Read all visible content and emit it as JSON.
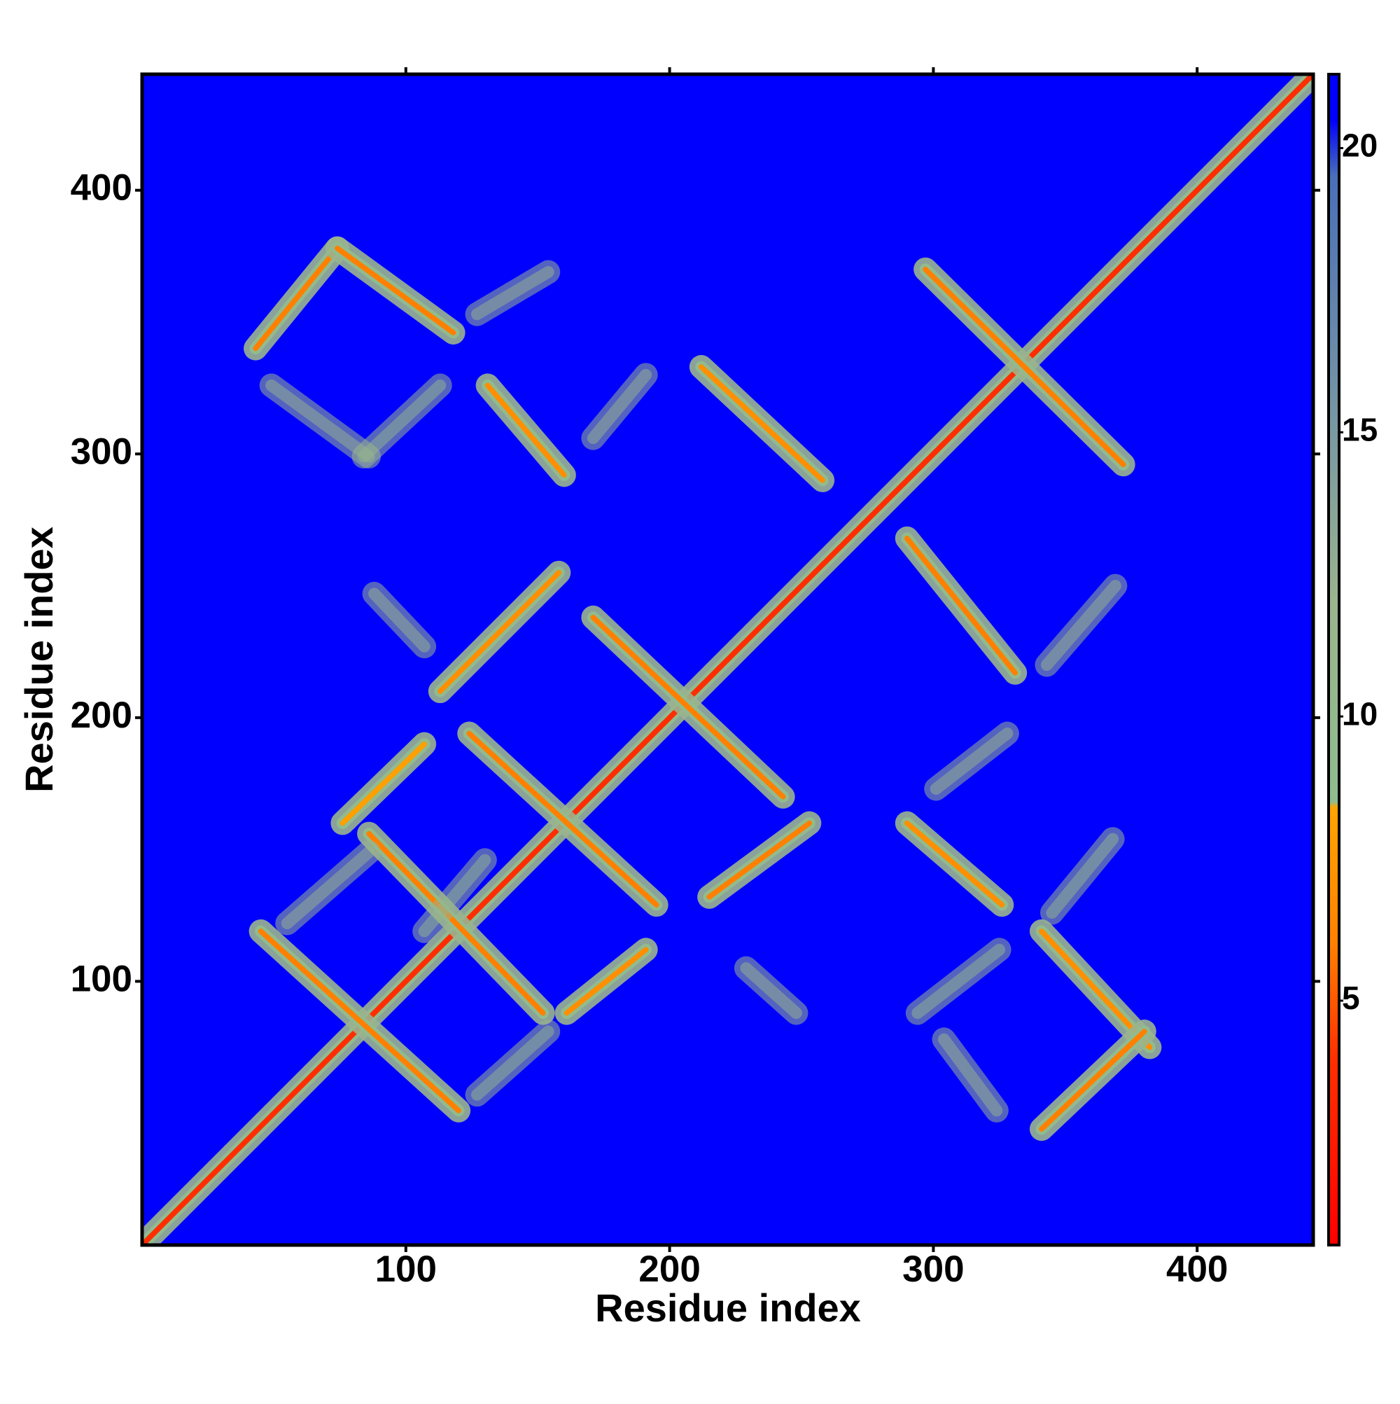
{
  "chart_data": {
    "type": "contact-map",
    "x_label": "Residue index",
    "y_label": "Residue index",
    "xlim": [
      0,
      444
    ],
    "ylim": [
      0,
      444
    ],
    "xticks": [
      100,
      200,
      300,
      400
    ],
    "yticks": [
      100,
      200,
      300,
      400
    ],
    "colorbar": {
      "lim": [
        0.7,
        21.3
      ],
      "ticks": [
        5,
        10,
        15,
        20
      ],
      "stops": [
        [
          0.7,
          "#ff0000"
        ],
        [
          4,
          "#ff3000"
        ],
        [
          6,
          "#ff8000"
        ],
        [
          8.4,
          "#ffa500"
        ],
        [
          8.5,
          "#8fbc8f"
        ],
        [
          12,
          "#9ab48e"
        ],
        [
          16,
          "#6f8fa8"
        ],
        [
          19.5,
          "#4a6fb8"
        ],
        [
          20.5,
          "#0000ff"
        ],
        [
          21.3,
          "#0000ff"
        ]
      ]
    },
    "contacts": [
      {
        "from": [
          1,
          1
        ],
        "to": [
          444,
          444
        ],
        "value": 3.8
      },
      {
        "from": [
          43,
          340
        ],
        "to": [
          74,
          378
        ],
        "value": 6
      },
      {
        "from": [
          74,
          378
        ],
        "to": [
          118,
          346
        ],
        "value": 6
      },
      {
        "from": [
          127,
          353
        ],
        "to": [
          154,
          369
        ],
        "value": 11
      },
      {
        "from": [
          49,
          326
        ],
        "to": [
          86,
          299
        ],
        "value": 11
      },
      {
        "from": [
          84,
          299
        ],
        "to": [
          113,
          326
        ],
        "value": 10
      },
      {
        "from": [
          131,
          326
        ],
        "to": [
          160,
          292
        ],
        "value": 7
      },
      {
        "from": [
          171,
          306
        ],
        "to": [
          191,
          330
        ],
        "value": 11
      },
      {
        "from": [
          212,
          333
        ],
        "to": [
          258,
          290
        ],
        "value": 7
      },
      {
        "from": [
          297,
          370
        ],
        "to": [
          372,
          296
        ],
        "value": 6
      },
      {
        "from": [
          290,
          268
        ],
        "to": [
          331,
          217
        ],
        "value": 6
      },
      {
        "from": [
          343,
          220
        ],
        "to": [
          369,
          250
        ],
        "value": 11
      },
      {
        "from": [
          113,
          210
        ],
        "to": [
          158,
          255
        ],
        "value": 7
      },
      {
        "from": [
          88,
          247
        ],
        "to": [
          107,
          227
        ],
        "value": 11
      },
      {
        "from": [
          171,
          238
        ],
        "to": [
          243,
          170
        ],
        "value": 6
      },
      {
        "from": [
          124,
          194
        ],
        "to": [
          195,
          129
        ],
        "value": 6
      },
      {
        "from": [
          76,
          160
        ],
        "to": [
          107,
          190
        ],
        "value": 8
      },
      {
        "from": [
          86,
          156
        ],
        "to": [
          152,
          88
        ],
        "value": 6
      },
      {
        "from": [
          161,
          88
        ],
        "to": [
          191,
          112
        ],
        "value": 7
      },
      {
        "from": [
          215,
          132
        ],
        "to": [
          253,
          160
        ],
        "value": 6
      },
      {
        "from": [
          229,
          105
        ],
        "to": [
          248,
          88
        ],
        "value": 11
      },
      {
        "from": [
          127,
          57
        ],
        "to": [
          154,
          81
        ],
        "value": 10
      },
      {
        "from": [
          45,
          119
        ],
        "to": [
          120,
          51
        ],
        "value": 6
      },
      {
        "from": [
          55,
          122
        ],
        "to": [
          86,
          149
        ],
        "value": 11
      },
      {
        "from": [
          107,
          119
        ],
        "to": [
          130,
          146
        ],
        "value": 10
      },
      {
        "from": [
          290,
          160
        ],
        "to": [
          326,
          129
        ],
        "value": 7
      },
      {
        "from": [
          301,
          173
        ],
        "to": [
          328,
          194
        ],
        "value": 11
      },
      {
        "from": [
          345,
          126
        ],
        "to": [
          368,
          154
        ],
        "value": 10
      },
      {
        "from": [
          341,
          119
        ],
        "to": [
          382,
          75
        ],
        "value": 7
      },
      {
        "from": [
          341,
          44
        ],
        "to": [
          380,
          81
        ],
        "value": 6
      },
      {
        "from": [
          294,
          88
        ],
        "to": [
          325,
          112
        ],
        "value": 10
      },
      {
        "from": [
          304,
          78
        ],
        "to": [
          324,
          51
        ],
        "value": 11
      }
    ]
  }
}
